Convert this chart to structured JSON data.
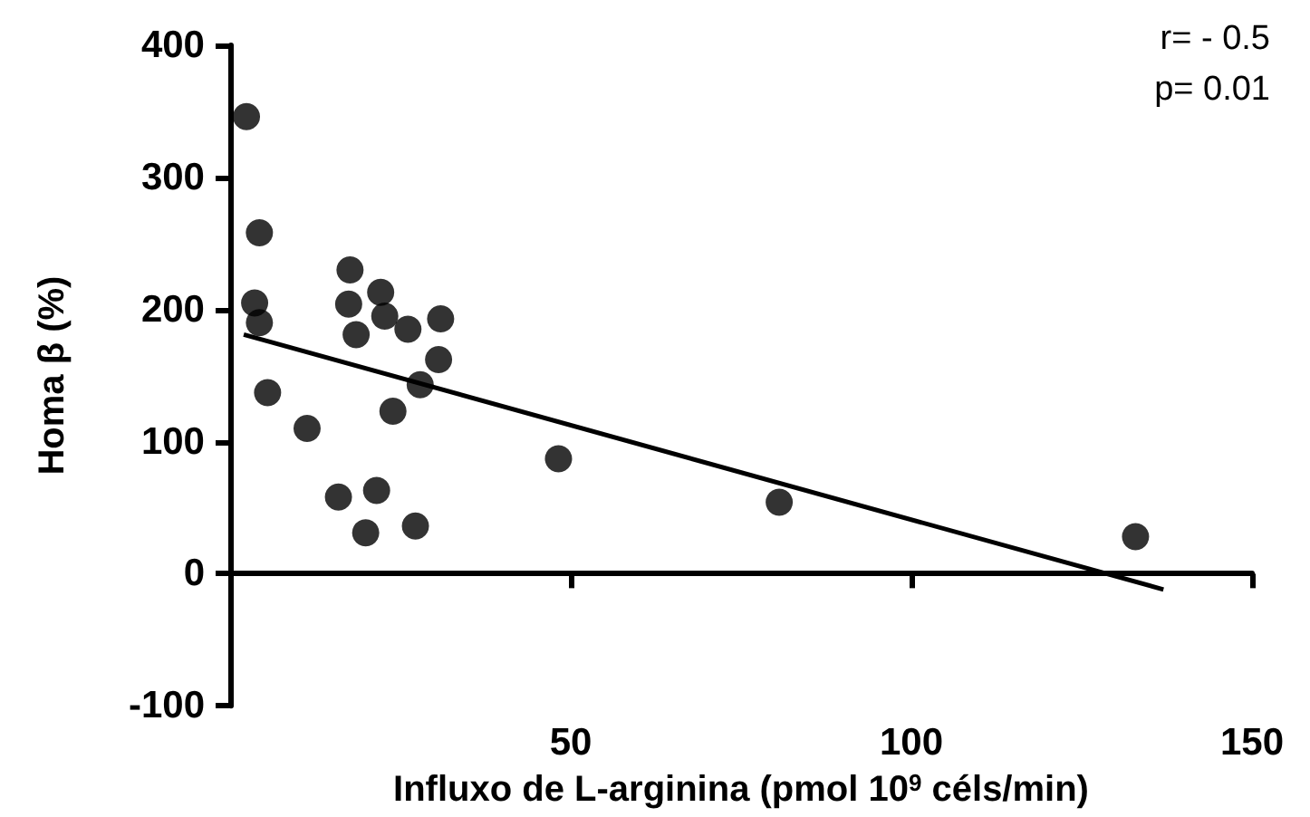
{
  "chart_data": {
    "type": "scatter",
    "xlabel": "Influxo de L-arginina (pmol 10$^{9}$ céls/min)",
    "ylabel": "Homa β (%)",
    "annotations": [
      "r= - 0.5",
      "p= 0.01"
    ],
    "xlim": [
      0,
      150
    ],
    "xticks": [
      50,
      100,
      150
    ],
    "ylim": [
      -100,
      400
    ],
    "yticks": [
      -100,
      0,
      100,
      200,
      300,
      400
    ],
    "marker": "circle",
    "series": [
      {
        "type": "scatter",
        "color": "#000000",
        "x": [
          2.4,
          4.3,
          3.6,
          4.3,
          5.5,
          11.3,
          17.6,
          17.4,
          18.5,
          22.1,
          22.7,
          26.1,
          30.9,
          30.6,
          27.9,
          23.9,
          15.9,
          21.5,
          19.9,
          27.2,
          48.2,
          80.6,
          132.9
        ],
        "values": [
          346,
          258,
          205,
          190,
          137,
          110,
          230,
          204,
          181,
          213,
          195,
          185,
          193,
          162,
          143,
          123,
          58,
          63,
          31,
          36,
          87,
          54,
          28
        ]
      },
      {
        "type": "line",
        "color": "#000000",
        "marker": "none",
        "line_style": "solid",
        "x": [
          2,
          137
        ],
        "values": [
          181,
          -12
        ]
      }
    ]
  }
}
